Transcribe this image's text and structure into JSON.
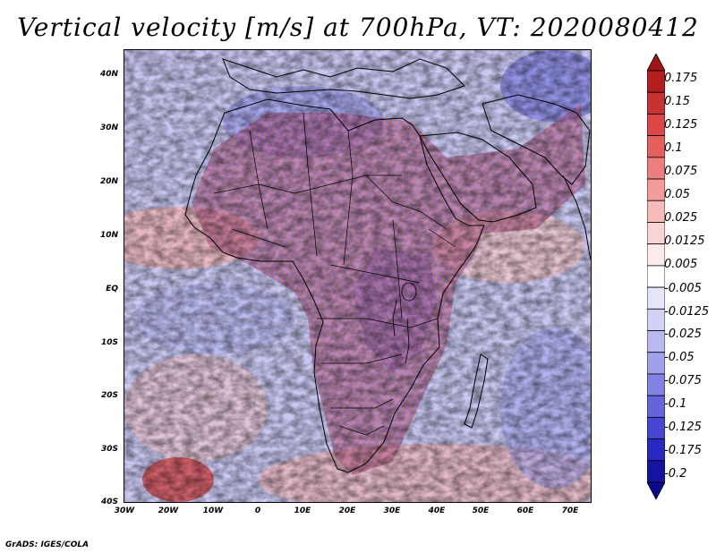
{
  "title": "Vertical velocity [m/s] at 700hPa, VT: 2020080412",
  "footer": "GrADS: IGES/COLA",
  "map": {
    "lat_labels": [
      "40N",
      "30N",
      "20N",
      "10N",
      "EQ",
      "10S",
      "20S",
      "30S",
      "40S"
    ],
    "lon_labels": [
      "30W",
      "20W",
      "10W",
      "0",
      "10E",
      "20E",
      "30E",
      "40E",
      "50E",
      "60E",
      "70E"
    ],
    "lon_range": [
      -30,
      75
    ],
    "lat_range": [
      -40,
      45
    ]
  },
  "colorbar": {
    "levels": [
      "0.175",
      "0.15",
      "0.125",
      "0.1",
      "0.075",
      "0.05",
      "0.025",
      "0.0125",
      "0.005",
      "-0.005",
      "-0.0125",
      "-0.025",
      "-0.05",
      "-0.075",
      "-0.1",
      "-0.125",
      "-0.175",
      "-0.2"
    ],
    "colors": [
      "#b41e1e",
      "#c83232",
      "#dc4646",
      "#e65f5f",
      "#ee7d7d",
      "#f39b9b",
      "#f8b9b9",
      "#fbd5d5",
      "#fdebeb",
      "#ffffff",
      "#e6e6fa",
      "#d2d2f5",
      "#b9b9f0",
      "#a0a0eb",
      "#8282e6",
      "#6464dc",
      "#4646d2",
      "#2828c3",
      "#1414a0"
    ],
    "max_color": "#a01414",
    "min_color": "#0a0a8c"
  }
}
